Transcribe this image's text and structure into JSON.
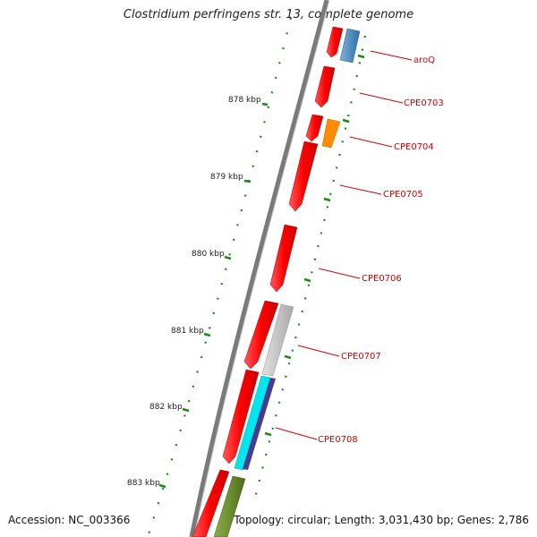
{
  "title": "Clostridium perfringens str. 13, complete genome",
  "footer": {
    "accession": "Accession: NC_003366",
    "summary": "Topology: circular; Length: 3,031,430 bp; Genes: 2,786"
  },
  "colors": {
    "backbone": "#7a7a7a",
    "tick": "#1a8a1a",
    "cds_red": "#ff0000",
    "label_red": "#d40000",
    "steel_blue": "#4682b4",
    "orange": "#ff8c00",
    "grey": "#bdbdbd",
    "cyan": "#00e5ee",
    "purple": "#483d8b",
    "olive": "#6b8e23"
  },
  "scale_labels": [
    "878 kbp",
    "879 kbp",
    "880 kbp",
    "881 kbp",
    "882 kbp",
    "883 kbp"
  ],
  "gene_labels": [
    "aroQ",
    "CPE0703",
    "CPE0704",
    "CPE0705",
    "CPE0706",
    "CPE0707",
    "CPE0708"
  ]
}
